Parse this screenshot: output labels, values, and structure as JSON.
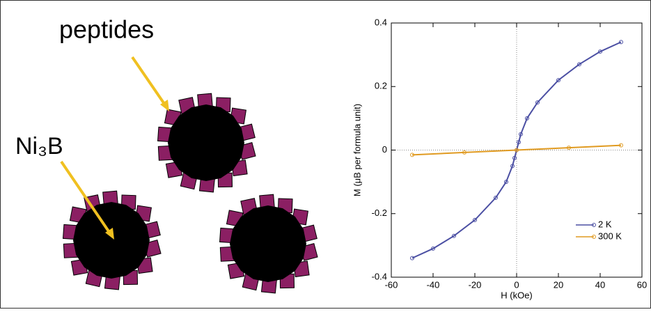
{
  "diagram": {
    "labels": [
      "peptides",
      "Ni₃B"
    ]
  },
  "chart_data": {
    "type": "line",
    "xlabel": "H (kOe)",
    "ylabel": "M (μB per formula unit)",
    "xlim": [
      -60,
      60
    ],
    "xticks": [
      -60,
      -40,
      -20,
      0,
      20,
      40,
      60
    ],
    "ylim": [
      -0.4,
      0.4
    ],
    "yticks": [
      -0.4,
      -0.2,
      0,
      0.2,
      0.4
    ],
    "zero_lines": true,
    "legend": "lower right",
    "series": [
      {
        "name": "2 K",
        "color": "#4b4fa3",
        "x": [
          -50,
          -40,
          -30,
          -20,
          -10,
          -5,
          -2,
          -1,
          0,
          1,
          2,
          5,
          10,
          20,
          30,
          40,
          50
        ],
        "values": [
          -0.34,
          -0.31,
          -0.27,
          -0.22,
          -0.15,
          -0.1,
          -0.05,
          -0.025,
          0,
          0.025,
          0.05,
          0.1,
          0.15,
          0.22,
          0.27,
          0.31,
          0.34
        ]
      },
      {
        "name": "300 K",
        "color": "#e09a20",
        "x": [
          -50,
          -25,
          0,
          25,
          50
        ],
        "values": [
          -0.015,
          -0.0075,
          0,
          0.0075,
          0.015
        ]
      }
    ]
  }
}
